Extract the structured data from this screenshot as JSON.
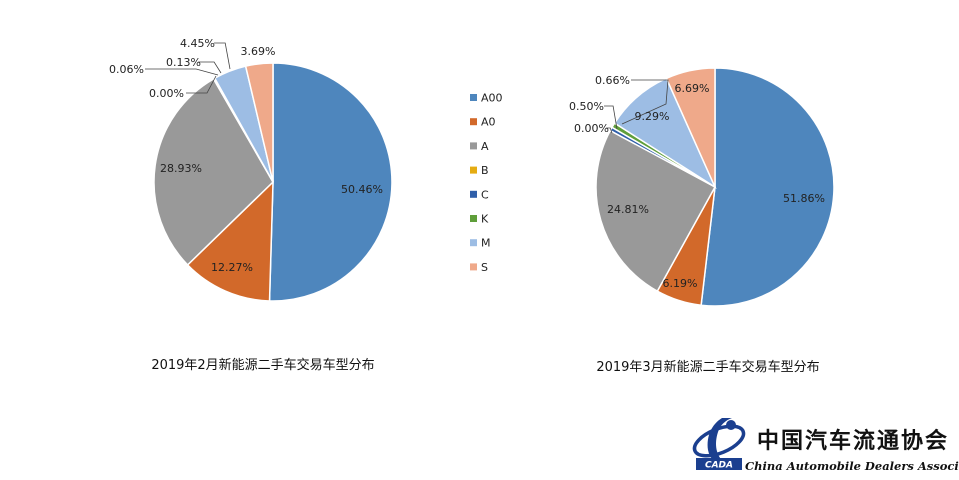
{
  "colors": {
    "A00": "#4e86bd",
    "A0": "#d2692a",
    "A": "#999999",
    "B": "#e5ac12",
    "C": "#2f5fa9",
    "K": "#5f9e3a",
    "M": "#9dbde4",
    "S": "#efa98a"
  },
  "legend": [
    "A00",
    "A0",
    "A",
    "B",
    "C",
    "K",
    "M",
    "S"
  ],
  "chart_data": [
    {
      "type": "pie",
      "title": "2019年2月新能源二手车交易车型分布",
      "categories": [
        "A00",
        "A0",
        "A",
        "B",
        "C",
        "K",
        "M",
        "S"
      ],
      "values": [
        50.46,
        12.27,
        28.93,
        0.0,
        0.06,
        0.13,
        4.45,
        3.69
      ],
      "labels": [
        "50.46%",
        "12.27%",
        "28.93%",
        "0.00%",
        "0.06%",
        "0.13%",
        "4.45%",
        "3.69%"
      ]
    },
    {
      "type": "pie",
      "title": "2019年3月新能源二手车交易车型分布",
      "categories": [
        "A00",
        "A0",
        "A",
        "B",
        "C",
        "K",
        "M",
        "S"
      ],
      "values": [
        51.86,
        6.19,
        24.81,
        0.0,
        0.5,
        0.66,
        9.29,
        6.69
      ],
      "labels": [
        "51.86%",
        "6.19%",
        "24.81%",
        "0.00%",
        "0.50%",
        "0.66%",
        "9.29%",
        "6.69%"
      ]
    }
  ],
  "logo": {
    "cn": "中国汽车流通协会",
    "en": "China Automobile Dealers Association",
    "abbr": "CADA"
  }
}
